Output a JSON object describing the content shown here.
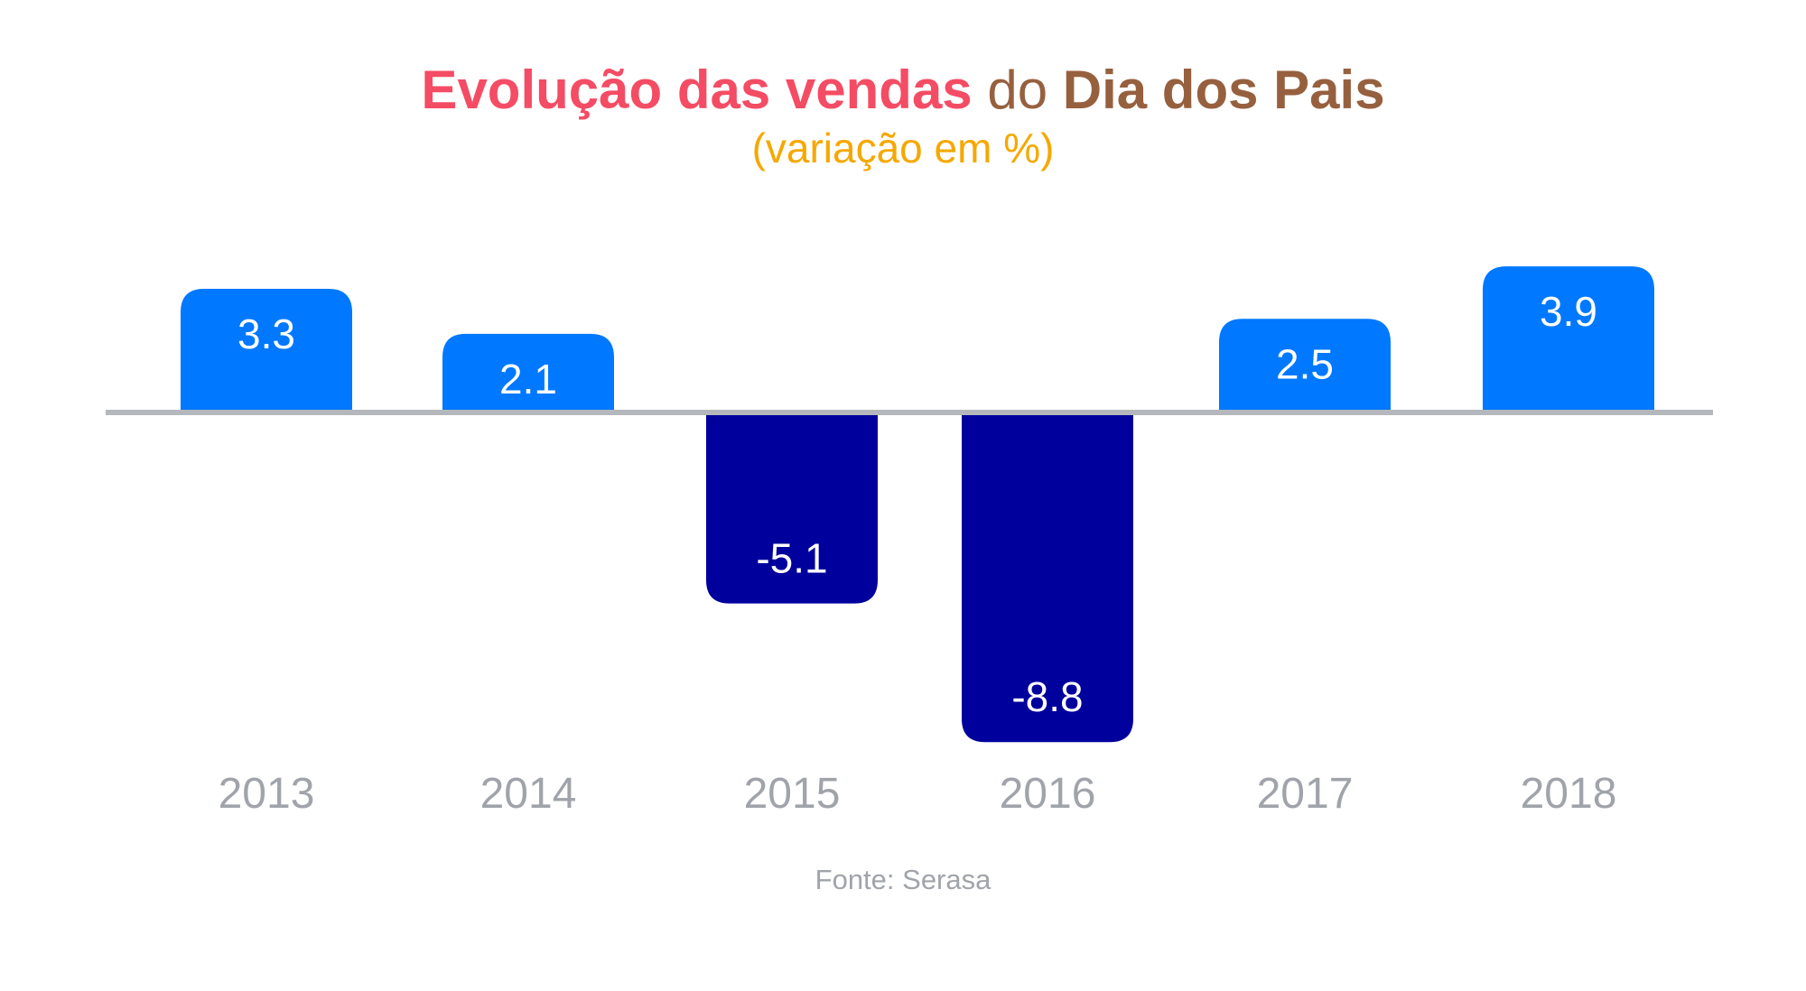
{
  "title": {
    "segments": [
      {
        "text": "Evolução das vendas",
        "color": "#F44C64",
        "bold": true
      },
      {
        "text": " do ",
        "color": "#96603F",
        "bold": false
      },
      {
        "text": "Dia dos Pais",
        "color": "#96603F",
        "bold": true
      }
    ]
  },
  "subtitle": {
    "text": "(variação em %)",
    "color": "#F5A800"
  },
  "source": {
    "text": "Fonte: Serasa",
    "color": "#A0A4AA"
  },
  "colors": {
    "positive": "#0078FF",
    "negative": "#00009C",
    "baseline": "#B4B8BC",
    "value_label": "#FFFFFF",
    "tick_label": "#A0A4AA"
  },
  "chart_data": {
    "type": "bar",
    "categories": [
      "2013",
      "2014",
      "2015",
      "2016",
      "2017",
      "2018"
    ],
    "values": [
      3.3,
      2.1,
      -5.1,
      -8.8,
      2.5,
      3.9
    ],
    "data_labels": [
      "3.3",
      "2.1",
      "-5.1",
      "-8.8",
      "2.5",
      "3.9"
    ],
    "title": "Evolução das vendas do Dia dos Pais",
    "subtitle": "(variação em %)",
    "xlabel": "",
    "ylabel": "",
    "grid": false,
    "legend": "none"
  }
}
